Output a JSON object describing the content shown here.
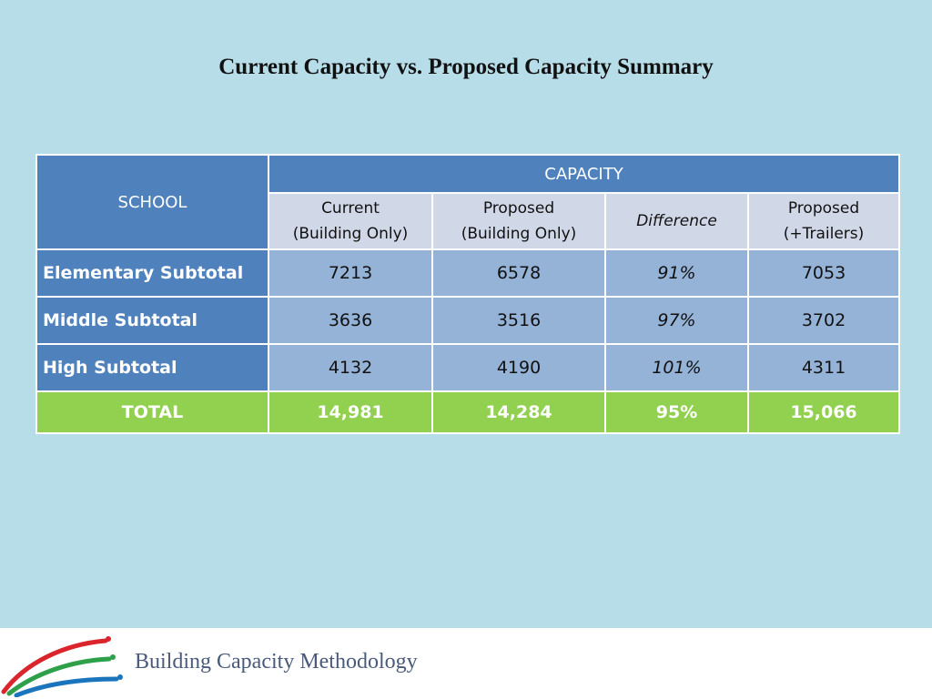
{
  "title": "Current Capacity vs. Proposed Capacity Summary",
  "table": {
    "school_header": "SCHOOL",
    "capacity_header": "CAPACITY",
    "sub_headers": [
      {
        "line1": "Current",
        "line2": "(Building Only)"
      },
      {
        "line1": "Proposed",
        "line2": "(Building Only)"
      },
      {
        "line1": "Difference",
        "line2": ""
      },
      {
        "line1": "Proposed",
        "line2": "(+Trailers)"
      }
    ],
    "rows": [
      {
        "label": "Elementary Subtotal",
        "current": "7213",
        "proposed": "6578",
        "difference": "91%",
        "trailers": "7053"
      },
      {
        "label": "Middle Subtotal",
        "current": "3636",
        "proposed": "3516",
        "difference": "97%",
        "trailers": "3702"
      },
      {
        "label": "High Subtotal",
        "current": "4132",
        "proposed": "4190",
        "difference": "101%",
        "trailers": "4311"
      }
    ],
    "total": {
      "label": "TOTAL",
      "current": "14,981",
      "proposed": "14,284",
      "difference": "95%",
      "trailers": "15,066"
    }
  },
  "footer": {
    "text": "Building Capacity Methodology",
    "logo_colors": [
      "#d9252b",
      "#2ea04a",
      "#1b75bc"
    ]
  }
}
